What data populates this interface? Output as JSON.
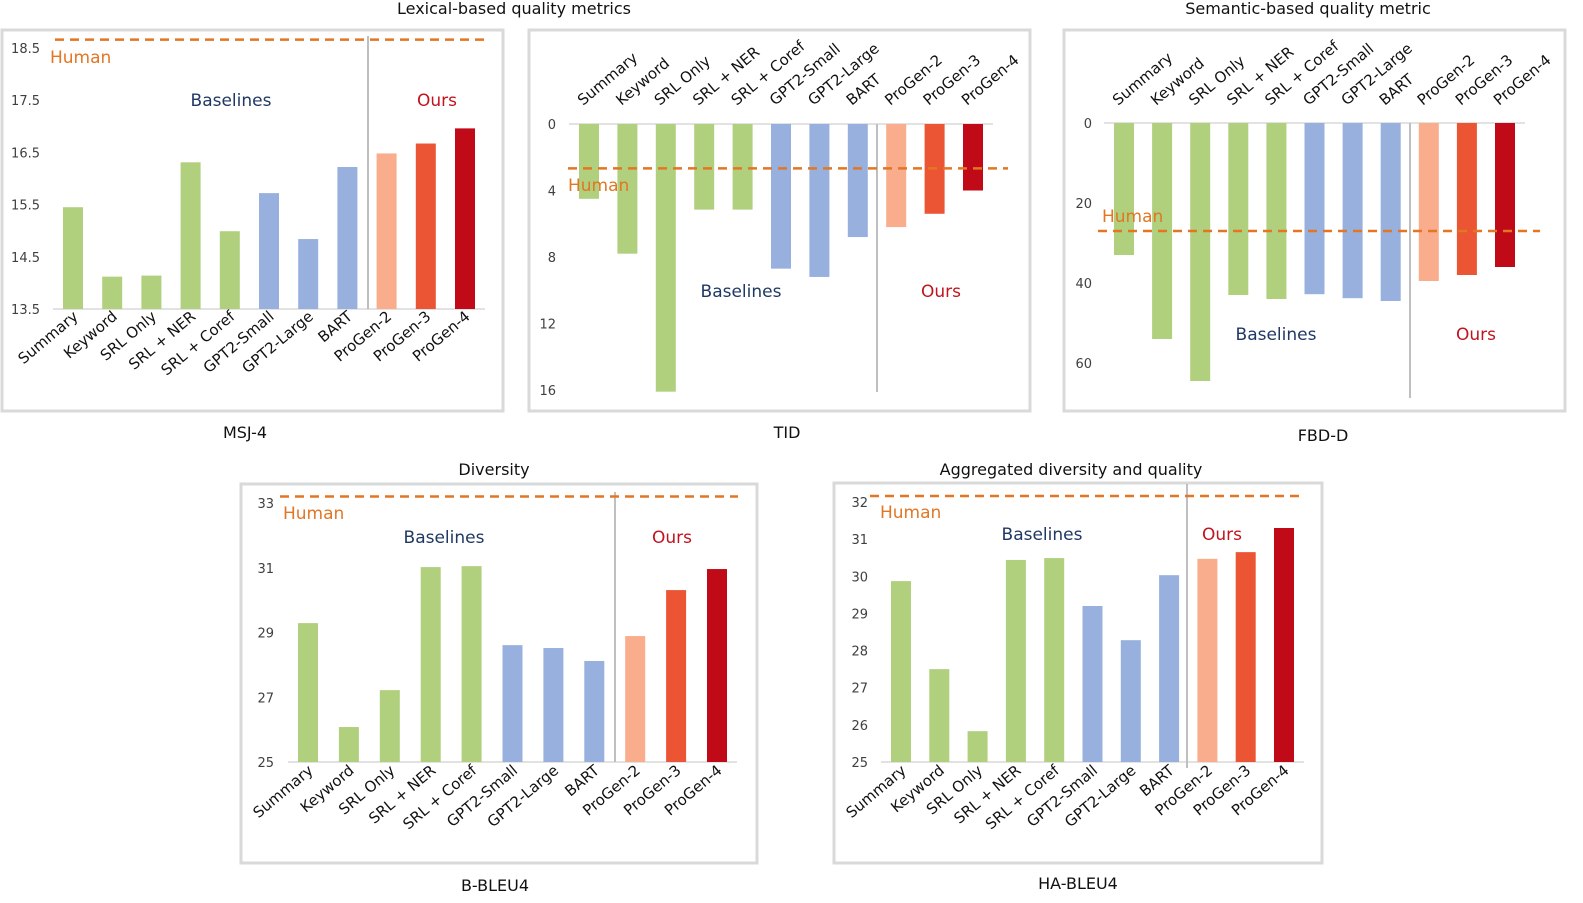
{
  "headings": [
    "Lexical-based quality metrics",
    "Semantic-based quality metric",
    "Diversity",
    "Aggregated diversity and quality"
  ],
  "colors": {
    "summary_group": "#b0d07e",
    "gpt_group": "#98b0dd",
    "progen2": "#f9ad8c",
    "progen3": "#eb5534",
    "progen4": "#c00a18",
    "human": "#e27623",
    "baselines_text": "#1f3864",
    "ours_text": "#c0141f"
  },
  "chart_data": [
    {
      "type": "bar",
      "xlabel": "MSJ-4",
      "ylim": [
        13.5,
        18.5
      ],
      "yticks": [
        13.5,
        14.5,
        15.5,
        16.5,
        17.5,
        18.5
      ],
      "inverted": false,
      "categories": [
        "Summary",
        "Keyword",
        "SRL Only",
        "SRL + NER",
        "SRL + Coref",
        "GPT2-Small",
        "GPT2-Large",
        "BART",
        "ProGen-2",
        "ProGen-3",
        "ProGen-4"
      ],
      "values": [
        15.45,
        14.12,
        14.14,
        16.31,
        14.99,
        15.72,
        14.84,
        16.22,
        16.48,
        16.67,
        16.96
      ],
      "human": 18.66,
      "human_label": "Human",
      "group_labels": [
        "Baselines",
        "Ours"
      ]
    },
    {
      "type": "bar",
      "xlabel": "TID",
      "ylim": [
        0,
        16
      ],
      "yticks": [
        0,
        4,
        8,
        12,
        16
      ],
      "inverted": true,
      "categories": [
        "Summary",
        "Keyword",
        "SRL Only",
        "SRL + NER",
        "SRL + Coref",
        "GPT2-Small",
        "GPT2-Large",
        "BART",
        "ProGen-2",
        "ProGen-3",
        "ProGen-4"
      ],
      "values": [
        4.5,
        7.8,
        16.1,
        5.15,
        5.15,
        8.7,
        9.2,
        6.8,
        6.2,
        5.4,
        4.0
      ],
      "human": 2.67,
      "human_label": "Human",
      "group_labels": [
        "Baselines",
        "Ours"
      ]
    },
    {
      "type": "bar",
      "xlabel": "FBD-D",
      "ylim": [
        0,
        60
      ],
      "yticks": [
        0,
        20,
        40,
        60
      ],
      "inverted": true,
      "categories": [
        "Summary",
        "Keyword",
        "SRL Only",
        "SRL + NER",
        "SRL + Coref",
        "GPT2-Small",
        "GPT2-Large",
        "BART",
        "ProGen-2",
        "ProGen-3",
        "ProGen-4"
      ],
      "values": [
        33,
        54,
        64.5,
        43,
        44,
        42.8,
        43.8,
        44.5,
        39.5,
        38,
        36
      ],
      "human": 27,
      "human_label": "Human",
      "group_labels": [
        "Baselines",
        "Ours"
      ]
    },
    {
      "type": "bar",
      "xlabel": "B-BLEU4",
      "ylim": [
        25,
        33
      ],
      "yticks": [
        25,
        27,
        29,
        31,
        33
      ],
      "inverted": false,
      "categories": [
        "Summary",
        "Keyword",
        "SRL Only",
        "SRL + NER",
        "SRL + Coref",
        "GPT2-Small",
        "GPT2-Large",
        "BART",
        "ProGen-2",
        "ProGen-3",
        "ProGen-4"
      ],
      "values": [
        29.29,
        26.08,
        27.22,
        31.02,
        31.05,
        28.61,
        28.52,
        28.12,
        28.89,
        30.31,
        30.96
      ],
      "human": 33.2,
      "human_label": "Human",
      "group_labels": [
        "Baselines",
        "Ours"
      ]
    },
    {
      "type": "bar",
      "xlabel": "HA-BLEU4",
      "ylim": [
        25,
        32
      ],
      "yticks": [
        25,
        26,
        27,
        28,
        29,
        30,
        31,
        32
      ],
      "inverted": false,
      "categories": [
        "Summary",
        "Keyword",
        "SRL Only",
        "SRL + NER",
        "SRL + Coref",
        "GPT2-Small",
        "GPT2-Large",
        "BART",
        "ProGen-2",
        "ProGen-3",
        "ProGen-4"
      ],
      "values": [
        29.87,
        27.5,
        25.83,
        30.44,
        30.49,
        29.2,
        28.28,
        30.03,
        30.47,
        30.65,
        31.3
      ],
      "human": 32.16,
      "human_label": "Human",
      "group_labels": [
        "Baselines",
        "Ours"
      ]
    }
  ]
}
